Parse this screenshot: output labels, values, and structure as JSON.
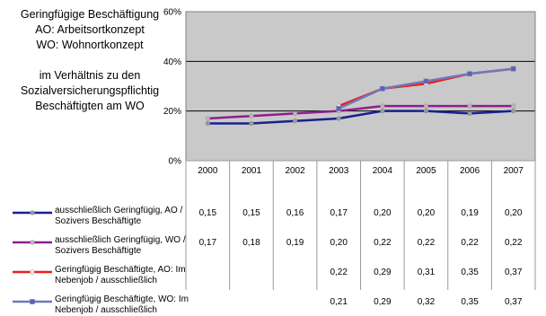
{
  "chart_data": {
    "type": "line",
    "title_lines": [
      "Geringfügige Beschäftigung",
      "AO: Arbeitsortkonzept",
      "WO: Wohnortkonzept",
      "",
      "im Verhältnis zu den",
      "Sozialversicherungspflichtig",
      "Beschäftigten am WO"
    ],
    "x": [
      "2000",
      "2001",
      "2002",
      "2003",
      "2004",
      "2005",
      "2006",
      "2007"
    ],
    "yticks": [
      "0%",
      "20%",
      "40%",
      "60%"
    ],
    "ylim": [
      0,
      0.6
    ],
    "grid": "horizontal",
    "legend_placement": "bottom-table",
    "series": [
      {
        "name": "ausschließlich Geringfügig, AO / Sozivers Beschäftigte",
        "color": "#1a1f8f",
        "marker": "#9a9a9a",
        "values": [
          0.15,
          0.15,
          0.16,
          0.17,
          0.2,
          0.2,
          0.19,
          0.2
        ],
        "labels": [
          "0,15",
          "0,15",
          "0,16",
          "0,17",
          "0,20",
          "0,20",
          "0,19",
          "0,20"
        ]
      },
      {
        "name": "ausschließlich Geringfügig, WO / Sozivers Beschäftigte",
        "color": "#8e1f8c",
        "marker": "#b8b8b8",
        "values": [
          0.17,
          0.18,
          0.19,
          0.2,
          0.22,
          0.22,
          0.22,
          0.22
        ],
        "labels": [
          "0,17",
          "0,18",
          "0,19",
          "0,20",
          "0,22",
          "0,22",
          "0,22",
          "0,22"
        ]
      },
      {
        "name": "Geringfügig Beschäftigte, AO: Im Nebenjob / ausschließlich",
        "color": "#e8201c",
        "marker": "#e8e8e8",
        "values": [
          null,
          null,
          null,
          0.22,
          0.29,
          0.31,
          0.35,
          0.37
        ],
        "labels": [
          "",
          "",
          "",
          "0,22",
          "0,29",
          "0,31",
          "0,35",
          "0,37"
        ]
      },
      {
        "name": "Geringfügig Beschäftigte, WO: Im Nebenjob / ausschließlich",
        "color": "#7377b8",
        "marker": "#5c62b0",
        "values": [
          null,
          null,
          null,
          0.21,
          0.29,
          0.32,
          0.35,
          0.37
        ],
        "labels": [
          "",
          "",
          "",
          "0,21",
          "0,29",
          "0,32",
          "0,35",
          "0,37"
        ]
      }
    ]
  }
}
